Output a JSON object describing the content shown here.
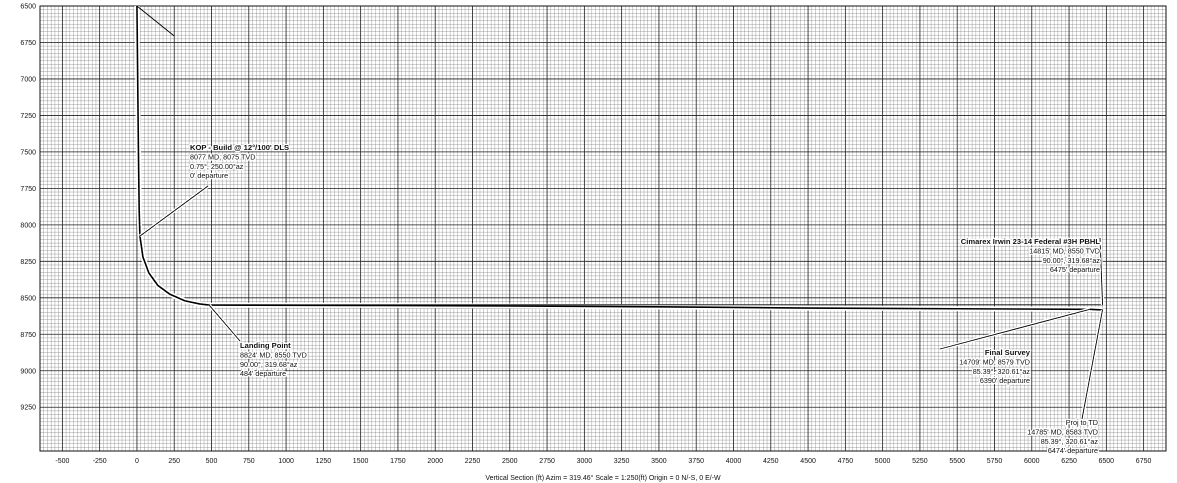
{
  "chart_data": {
    "type": "line",
    "title": "",
    "xlabel": "Vertical Section (ft) Azim = 319.46° Scale = 1:250(ft) Origin = 0 N/-S, 0 E/-W",
    "ylabel": "",
    "xlim": [
      -650,
      6900
    ],
    "ylim": [
      9550,
      6500
    ],
    "y_inverted": true,
    "grid": true,
    "x_ticks": [
      -500,
      -250,
      0,
      250,
      500,
      750,
      1000,
      1250,
      1500,
      1750,
      2000,
      2250,
      2500,
      2750,
      3000,
      3250,
      3500,
      3750,
      4000,
      4250,
      4500,
      4750,
      5000,
      5250,
      5500,
      5750,
      6000,
      6250,
      6500,
      6750
    ],
    "y_ticks": [
      6500,
      6750,
      7000,
      7250,
      7500,
      7750,
      8000,
      8250,
      8500,
      8750,
      9000,
      9250
    ],
    "series": [
      {
        "x": [
          0,
          5,
          10,
          15,
          20,
          40,
          80,
          140,
          220,
          320,
          420,
          484,
          1500,
          2500,
          3500,
          4500,
          5500,
          6390,
          6474
        ],
        "y": [
          6500,
          7000,
          7500,
          7900,
          8077,
          8220,
          8330,
          8415,
          8475,
          8520,
          8542,
          8550,
          8552,
          8556,
          8562,
          8570,
          8575,
          8579,
          8583
        ]
      }
    ],
    "annotations": [
      {
        "id": "kop",
        "lines": [
          "KOP - Build @ 12°/100' DLS",
          "8077 MD, 8075 TVD",
          "0.75°, 250.00°az",
          "0' departure"
        ],
        "bold_first": true,
        "point": [
          20,
          8077
        ]
      },
      {
        "id": "landing",
        "lines": [
          "Landing Point",
          "8824' MD, 8550 TVD",
          "90.00°, 319.68°az",
          "484' departure"
        ],
        "bold_first": true,
        "point": [
          484,
          8550
        ]
      },
      {
        "id": "pbhl",
        "lines": [
          "Cimarex Irwin 23-14 Federal #3H PBHL",
          "14815' MD, 8550 TVD",
          "90.00°, 319.68°az",
          "6475' departure"
        ],
        "bold_first": true,
        "point": [
          6475,
          8550
        ]
      },
      {
        "id": "final",
        "lines": [
          "Final Survey",
          "14709' MD, 8579 TVD",
          "85.39°, 320.61°az",
          "6390' departure"
        ],
        "bold_first": true,
        "point": [
          6390,
          8579
        ]
      },
      {
        "id": "proj",
        "lines": [
          "Proj to TD",
          "14785' MD, 8583 TVD",
          "85.39°, 320.61°az",
          "6474' departure"
        ],
        "bold_first": false,
        "point": [
          6474,
          8583
        ]
      }
    ]
  }
}
